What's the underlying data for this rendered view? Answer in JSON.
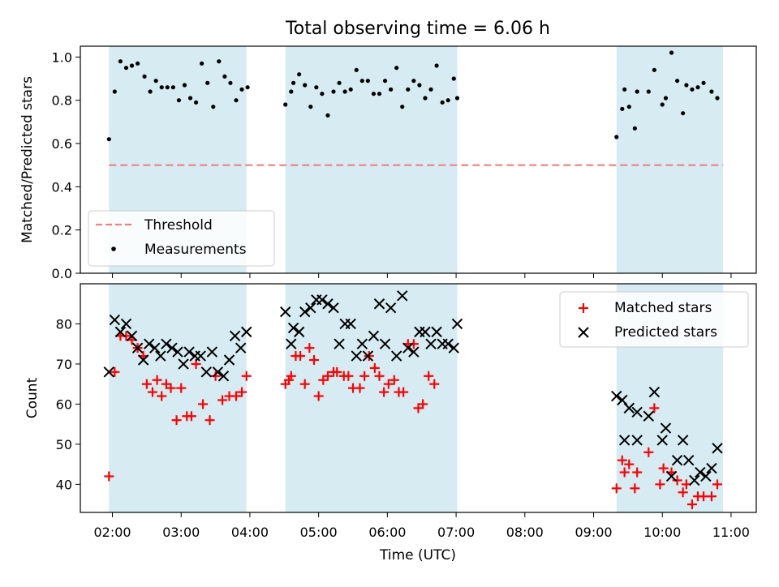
{
  "figure": {
    "title": "Total observing time = 6.06 h",
    "xlabel": "Time (UTC)",
    "xticks": [
      "02:00",
      "03:00",
      "04:00",
      "05:00",
      "06:00",
      "07:00",
      "08:00",
      "09:00",
      "10:00",
      "11:00"
    ]
  },
  "chart_data": [
    {
      "type": "scatter",
      "ylabel": "Matched/Predicted stars",
      "xlim": [
        "01:32",
        "11:22"
      ],
      "ylim": [
        0,
        1.05
      ],
      "yticks": [
        "0.0",
        "0.2",
        "0.4",
        "0.6",
        "0.8",
        "1.0"
      ],
      "grid": false,
      "legend_position": "lower-left",
      "shaded_intervals": [
        [
          "01:57",
          "03:57"
        ],
        [
          "04:31",
          "07:01"
        ],
        [
          "09:20",
          "10:53"
        ]
      ],
      "threshold": {
        "name": "Threshold",
        "y": 0.5,
        "x_range": [
          "01:57",
          "10:53"
        ],
        "color": "#f08080",
        "style": "dashed"
      },
      "series": [
        {
          "name": "Measurements",
          "marker": "dot",
          "color": "#000000",
          "points": [
            [
              "01:57",
              0.62
            ],
            [
              "02:02",
              0.84
            ],
            [
              "02:07",
              0.98
            ],
            [
              "02:12",
              0.95
            ],
            [
              "02:17",
              0.96
            ],
            [
              "02:22",
              0.97
            ],
            [
              "02:28",
              0.91
            ],
            [
              "02:33",
              0.84
            ],
            [
              "02:38",
              0.89
            ],
            [
              "02:43",
              0.86
            ],
            [
              "02:48",
              0.86
            ],
            [
              "02:53",
              0.86
            ],
            [
              "02:58",
              0.8
            ],
            [
              "03:03",
              0.87
            ],
            [
              "03:08",
              0.81
            ],
            [
              "03:13",
              0.79
            ],
            [
              "03:18",
              0.97
            ],
            [
              "03:23",
              0.88
            ],
            [
              "03:28",
              0.77
            ],
            [
              "03:33",
              0.98
            ],
            [
              "03:38",
              0.91
            ],
            [
              "03:43",
              0.88
            ],
            [
              "03:48",
              0.8
            ],
            [
              "03:53",
              0.85
            ],
            [
              "03:58",
              0.86
            ],
            [
              "04:31",
              0.78
            ],
            [
              "04:36",
              0.84
            ],
            [
              "04:38",
              0.88
            ],
            [
              "04:43",
              0.92
            ],
            [
              "04:48",
              0.87
            ],
            [
              "04:53",
              0.77
            ],
            [
              "04:58",
              0.86
            ],
            [
              "05:03",
              0.83
            ],
            [
              "05:08",
              0.73
            ],
            [
              "05:13",
              0.84
            ],
            [
              "05:18",
              0.88
            ],
            [
              "05:23",
              0.84
            ],
            [
              "05:28",
              0.85
            ],
            [
              "05:33",
              0.94
            ],
            [
              "05:38",
              0.89
            ],
            [
              "05:43",
              0.89
            ],
            [
              "05:48",
              0.83
            ],
            [
              "05:53",
              0.83
            ],
            [
              "05:58",
              0.89
            ],
            [
              "06:03",
              0.85
            ],
            [
              "06:08",
              0.95
            ],
            [
              "06:13",
              0.77
            ],
            [
              "06:18",
              0.85
            ],
            [
              "06:23",
              0.89
            ],
            [
              "06:28",
              0.87
            ],
            [
              "06:33",
              0.81
            ],
            [
              "06:38",
              0.85
            ],
            [
              "06:43",
              0.96
            ],
            [
              "06:48",
              0.79
            ],
            [
              "06:53",
              0.8
            ],
            [
              "06:58",
              0.9
            ],
            [
              "07:01",
              0.81
            ],
            [
              "09:20",
              0.63
            ],
            [
              "09:25",
              0.76
            ],
            [
              "09:27",
              0.85
            ],
            [
              "09:31",
              0.77
            ],
            [
              "09:36",
              0.67
            ],
            [
              "09:38",
              0.84
            ],
            [
              "09:48",
              0.84
            ],
            [
              "09:53",
              0.94
            ],
            [
              "10:00",
              0.78
            ],
            [
              "10:03",
              0.81
            ],
            [
              "10:08",
              1.02
            ],
            [
              "10:13",
              0.89
            ],
            [
              "10:18",
              0.74
            ],
            [
              "10:21",
              0.87
            ],
            [
              "10:26",
              0.85
            ],
            [
              "10:31",
              0.86
            ],
            [
              "10:36",
              0.88
            ],
            [
              "10:43",
              0.84
            ],
            [
              "10:48",
              0.81
            ]
          ]
        }
      ]
    },
    {
      "type": "scatter",
      "ylabel": "Count",
      "xlim": [
        "01:32",
        "11:22"
      ],
      "ylim": [
        33,
        90
      ],
      "yticks": [
        "40",
        "50",
        "60",
        "70",
        "80"
      ],
      "grid": false,
      "legend_position": "upper-right",
      "shaded_intervals": [
        [
          "01:57",
          "03:57"
        ],
        [
          "04:31",
          "07:01"
        ],
        [
          "09:20",
          "10:53"
        ]
      ],
      "series": [
        {
          "name": "Matched stars",
          "marker": "plus",
          "color": "#ff0000",
          "points": [
            [
              "01:57",
              42
            ],
            [
              "02:02",
              68
            ],
            [
              "02:07",
              77
            ],
            [
              "02:12",
              77
            ],
            [
              "02:17",
              76
            ],
            [
              "02:22",
              74
            ],
            [
              "02:27",
              72
            ],
            [
              "02:30",
              65
            ],
            [
              "02:35",
              63
            ],
            [
              "02:39",
              66
            ],
            [
              "02:43",
              62
            ],
            [
              "02:47",
              65
            ],
            [
              "02:51",
              64
            ],
            [
              "02:56",
              56
            ],
            [
              "03:00",
              64
            ],
            [
              "03:05",
              57
            ],
            [
              "03:09",
              57
            ],
            [
              "03:13",
              70
            ],
            [
              "03:19",
              60
            ],
            [
              "03:25",
              56
            ],
            [
              "03:30",
              67
            ],
            [
              "03:36",
              61
            ],
            [
              "03:42",
              62
            ],
            [
              "03:48",
              62
            ],
            [
              "03:53",
              63
            ],
            [
              "03:57",
              67
            ],
            [
              "04:31",
              65
            ],
            [
              "04:34",
              66
            ],
            [
              "04:36",
              67
            ],
            [
              "04:40",
              72
            ],
            [
              "04:44",
              72
            ],
            [
              "04:48",
              65
            ],
            [
              "04:52",
              74
            ],
            [
              "04:56",
              71
            ],
            [
              "05:00",
              62
            ],
            [
              "05:04",
              66
            ],
            [
              "05:08",
              67
            ],
            [
              "05:13",
              68
            ],
            [
              "05:16",
              68
            ],
            [
              "05:22",
              67
            ],
            [
              "05:26",
              67
            ],
            [
              "05:30",
              64
            ],
            [
              "05:36",
              64
            ],
            [
              "05:40",
              67
            ],
            [
              "05:44",
              72
            ],
            [
              "05:49",
              69
            ],
            [
              "05:53",
              67
            ],
            [
              "05:57",
              63
            ],
            [
              "06:01",
              65
            ],
            [
              "06:06",
              66
            ],
            [
              "06:10",
              63
            ],
            [
              "06:14",
              63
            ],
            [
              "06:18",
              75
            ],
            [
              "06:23",
              75
            ],
            [
              "06:27",
              59
            ],
            [
              "06:31",
              60
            ],
            [
              "06:36",
              67
            ],
            [
              "06:41",
              65
            ],
            [
              "09:20",
              39
            ],
            [
              "09:25",
              46
            ],
            [
              "09:27",
              43
            ],
            [
              "09:31",
              45
            ],
            [
              "09:36",
              39
            ],
            [
              "09:38",
              43
            ],
            [
              "09:48",
              48
            ],
            [
              "09:53",
              59
            ],
            [
              "09:58",
              40
            ],
            [
              "10:01",
              44
            ],
            [
              "10:08",
              43
            ],
            [
              "10:13",
              41
            ],
            [
              "10:18",
              38
            ],
            [
              "10:21",
              40
            ],
            [
              "10:26",
              35
            ],
            [
              "10:31",
              37
            ],
            [
              "10:36",
              37
            ],
            [
              "10:43",
              37
            ],
            [
              "10:48",
              40
            ]
          ]
        },
        {
          "name": "Predicted stars",
          "marker": "x",
          "color": "#000000",
          "points": [
            [
              "01:57",
              68
            ],
            [
              "02:02",
              81
            ],
            [
              "02:07",
              78
            ],
            [
              "02:12",
              80
            ],
            [
              "02:17",
              77
            ],
            [
              "02:22",
              74
            ],
            [
              "02:27",
              71
            ],
            [
              "02:32",
              75
            ],
            [
              "02:37",
              74
            ],
            [
              "02:42",
              72
            ],
            [
              "02:47",
              75
            ],
            [
              "02:52",
              74
            ],
            [
              "02:57",
              73
            ],
            [
              "03:02",
              70
            ],
            [
              "03:07",
              73
            ],
            [
              "03:12",
              72
            ],
            [
              "03:17",
              72
            ],
            [
              "03:22",
              68
            ],
            [
              "03:27",
              73
            ],
            [
              "03:32",
              68
            ],
            [
              "03:37",
              67
            ],
            [
              "03:42",
              71
            ],
            [
              "03:47",
              77
            ],
            [
              "03:52",
              74
            ],
            [
              "03:57",
              78
            ],
            [
              "04:31",
              83
            ],
            [
              "04:36",
              75
            ],
            [
              "04:38",
              79
            ],
            [
              "04:43",
              78
            ],
            [
              "04:48",
              83
            ],
            [
              "04:53",
              84
            ],
            [
              "04:58",
              86
            ],
            [
              "05:03",
              86
            ],
            [
              "05:08",
              85
            ],
            [
              "05:13",
              84
            ],
            [
              "05:18",
              75
            ],
            [
              "05:23",
              80
            ],
            [
              "05:28",
              80
            ],
            [
              "05:33",
              72
            ],
            [
              "05:38",
              75
            ],
            [
              "05:43",
              72
            ],
            [
              "05:48",
              77
            ],
            [
              "05:53",
              85
            ],
            [
              "05:58",
              75
            ],
            [
              "06:03",
              84
            ],
            [
              "06:08",
              72
            ],
            [
              "06:13",
              87
            ],
            [
              "06:18",
              74
            ],
            [
              "06:23",
              73
            ],
            [
              "06:28",
              78
            ],
            [
              "06:33",
              78
            ],
            [
              "06:38",
              75
            ],
            [
              "06:43",
              78
            ],
            [
              "06:48",
              75
            ],
            [
              "06:53",
              75
            ],
            [
              "06:58",
              74
            ],
            [
              "07:01",
              80
            ],
            [
              "09:20",
              62
            ],
            [
              "09:25",
              61
            ],
            [
              "09:27",
              51
            ],
            [
              "09:31",
              59
            ],
            [
              "09:38",
              58
            ],
            [
              "09:38",
              51
            ],
            [
              "09:48",
              57
            ],
            [
              "09:53",
              63
            ],
            [
              "10:00",
              51
            ],
            [
              "10:03",
              54
            ],
            [
              "10:08",
              42
            ],
            [
              "10:13",
              46
            ],
            [
              "10:18",
              51
            ],
            [
              "10:23",
              46
            ],
            [
              "10:28",
              41
            ],
            [
              "10:33",
              43
            ],
            [
              "10:38",
              42
            ],
            [
              "10:43",
              44
            ],
            [
              "10:48",
              49
            ]
          ]
        }
      ]
    }
  ]
}
